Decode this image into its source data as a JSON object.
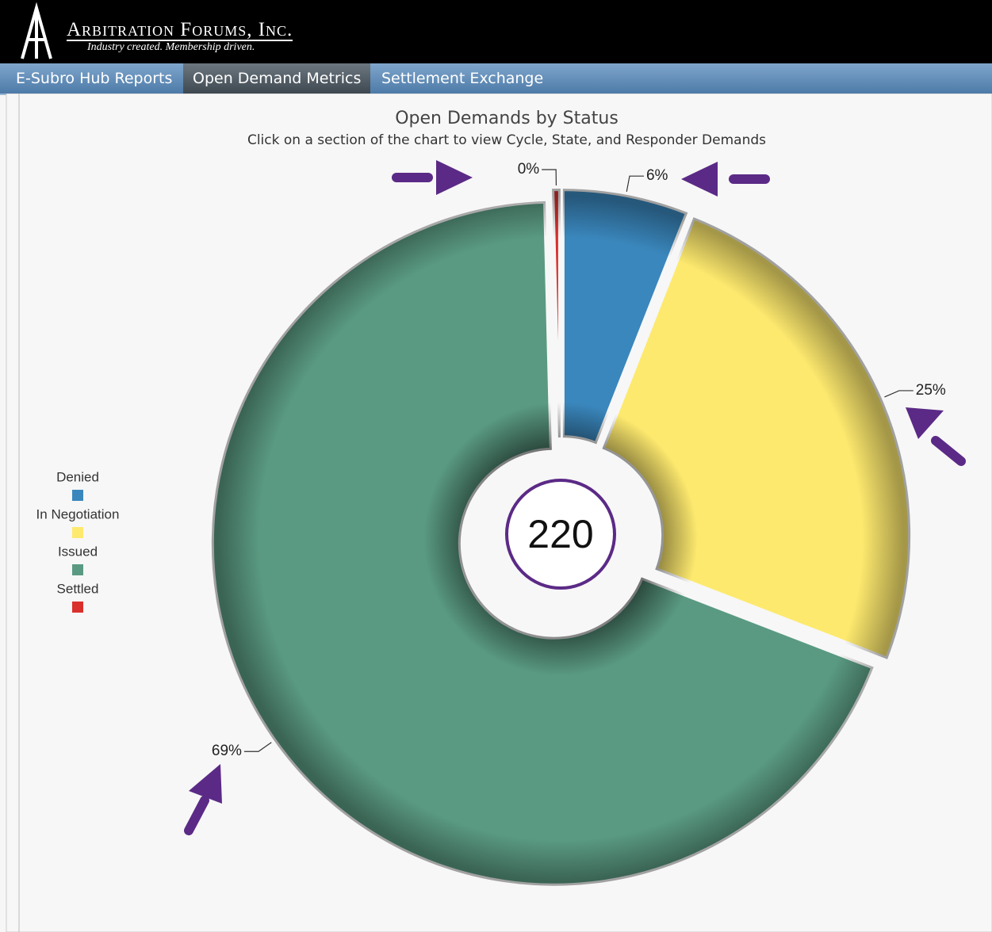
{
  "header": {
    "brand": "Arbitration Forums, Inc.",
    "tagline": "Industry created. Membership driven."
  },
  "nav": {
    "tabs": [
      "E-Subro Hub Reports",
      "Open Demand Metrics",
      "Settlement Exchange"
    ],
    "active": 1
  },
  "chart_data": {
    "type": "donut",
    "title": "Open Demands by Status",
    "subtitle": "Click on a section of the chart to view Cycle, State, and Responder Demands",
    "categories": [
      "Denied",
      "In Negotiation",
      "Issued",
      "Settled"
    ],
    "values": [
      6,
      25,
      69,
      0.4
    ],
    "value_labels": [
      "6%",
      "25%",
      "69%",
      "0%"
    ],
    "colors": [
      "#3a87bd",
      "#fde96e",
      "#5a9a82",
      "#d9302c"
    ],
    "total": 220,
    "legend": "left"
  }
}
